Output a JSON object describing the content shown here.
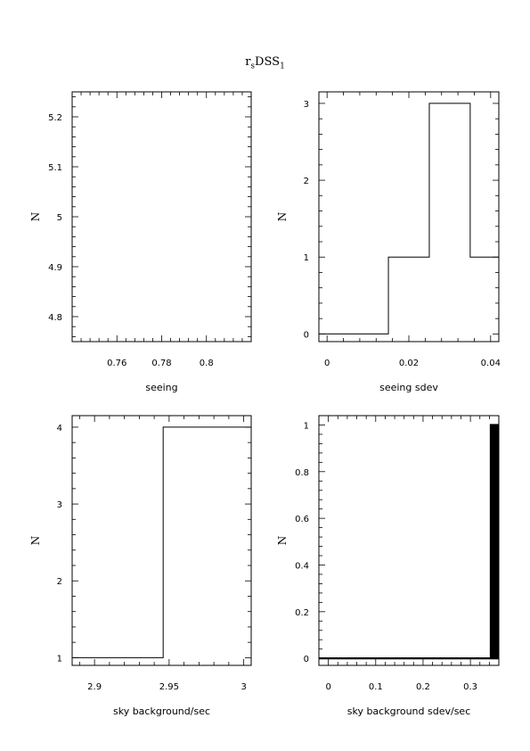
{
  "page": {
    "title_main": "r",
    "title_sub1": "s",
    "title_mid": "DSS",
    "title_sub2": "1"
  },
  "chart_data": [
    {
      "type": "line",
      "step": true,
      "xlabel": "seeing",
      "ylabel": "N",
      "xlim": [
        0.74,
        0.82
      ],
      "ylim": [
        4.75,
        5.25
      ],
      "xticks": [
        0.76,
        0.78,
        0.8
      ],
      "xtick_labels": [
        "0.76",
        "0.78",
        "0.8"
      ],
      "yticks": [
        4.8,
        4.9,
        5,
        5.1,
        5.2
      ],
      "ytick_labels": [
        "4.8",
        "4.9",
        "5",
        "5.1",
        "5.2"
      ],
      "x": [],
      "y": []
    },
    {
      "type": "line",
      "step": true,
      "xlabel": "seeing sdev",
      "ylabel": "N",
      "xlim": [
        -0.002,
        0.042
      ],
      "ylim": [
        -0.1,
        3.15
      ],
      "xticks": [
        0,
        0.02,
        0.04
      ],
      "xtick_labels": [
        "0",
        "0.02",
        "0.04"
      ],
      "yticks": [
        0,
        1,
        2,
        3
      ],
      "ytick_labels": [
        "0",
        "1",
        "2",
        "3"
      ],
      "x": [
        -0.002,
        0.015,
        0.015,
        0.025,
        0.025,
        0.035,
        0.035,
        0.042
      ],
      "y": [
        0,
        0,
        1,
        1,
        3,
        3,
        1,
        1
      ]
    },
    {
      "type": "line",
      "step": true,
      "xlabel": "sky background/sec",
      "ylabel": "N",
      "xlim": [
        2.885,
        3.005
      ],
      "ylim": [
        0.9,
        4.15
      ],
      "xticks": [
        2.9,
        2.95,
        3
      ],
      "xtick_labels": [
        "2.9",
        "2.95",
        "3"
      ],
      "yticks": [
        1,
        2,
        3,
        4
      ],
      "ytick_labels": [
        "1",
        "2",
        "3",
        "4"
      ],
      "x": [
        2.885,
        2.946,
        2.946,
        3.005
      ],
      "y": [
        1,
        1,
        4,
        4
      ]
    },
    {
      "type": "line",
      "step": true,
      "xlabel": "sky background sdev/sec",
      "ylabel": "N",
      "xlim": [
        -0.02,
        0.36
      ],
      "ylim": [
        -0.03,
        1.04
      ],
      "xticks": [
        0,
        0.1,
        0.2,
        0.3
      ],
      "xtick_labels": [
        "0",
        "0.1",
        "0.2",
        "0.3"
      ],
      "yticks": [
        0,
        0.2,
        0.4,
        0.6,
        0.8,
        1
      ],
      "ytick_labels": [
        "0",
        "0.2",
        "0.4",
        "0.6",
        "0.8",
        "1"
      ],
      "x": [
        -0.02,
        0.343,
        0.343,
        0.346,
        0.346,
        0.349,
        0.349,
        0.352,
        0.352,
        0.355,
        0.355,
        0.358,
        0.358,
        0.36
      ],
      "y": [
        0,
        0,
        1,
        1,
        0,
        0,
        1,
        1,
        0,
        0,
        1,
        1,
        0,
        0
      ]
    }
  ]
}
